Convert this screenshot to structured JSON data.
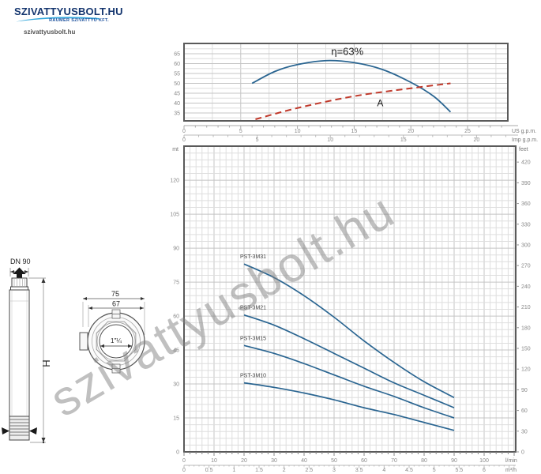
{
  "logo": {
    "title": "SZIVATTYUSBOLT.HU",
    "subtitle": "RAUMER SZIVATTYÚ KFT.",
    "site": "szivattyusbolt.hu"
  },
  "watermark": "szivattyusbolt.hu",
  "colors": {
    "curve": "#2a6591",
    "dashed": "#c0392b",
    "grid_minor": "#dedede",
    "grid_major": "#c4c4c4",
    "border": "#5a5a5a",
    "logo_navy": "#14356e",
    "logo_blue": "#35a8dc"
  },
  "drawing": {
    "dn_label": "DN 90",
    "height_label": "H",
    "outer_dim": "75",
    "inner_dim": "67",
    "thread_label": "1\"¼"
  },
  "chart_data": [
    {
      "type": "line",
      "name": "efficiency-chart",
      "title": "",
      "ylim": [
        31,
        70.2
      ],
      "yticks": [
        35,
        40,
        45,
        50,
        55,
        60,
        65
      ],
      "grid": {
        "x_minor": 2.5,
        "y_minor": 2.5,
        "on": true
      },
      "x_axes": [
        {
          "label": "US g.p.m.",
          "ticks": [
            0,
            5,
            10,
            15,
            20,
            25
          ],
          "max": 28.5
        },
        {
          "label": "Imp g.p.m.",
          "ticks": [
            0,
            5,
            10,
            15,
            20
          ],
          "max": 22.2
        }
      ],
      "annotations": [
        {
          "text": "η=63%",
          "x": 14.4,
          "y": 64.5,
          "size": 13
        },
        {
          "text": "A",
          "x": 17.3,
          "y": 38.5,
          "size": 12
        }
      ],
      "series": [
        {
          "name": "efficiency",
          "style": "solid",
          "x": [
            6.0,
            8,
            10,
            12.5,
            15,
            17.5,
            20,
            22,
            23.5
          ],
          "y": [
            50,
            56,
            59.5,
            61.5,
            60.5,
            57,
            50.5,
            43.5,
            35.5
          ]
        },
        {
          "name": "A",
          "style": "dashed",
          "x": [
            6.3,
            10,
            15,
            20,
            23.5
          ],
          "y": [
            31.8,
            37.5,
            43.5,
            47.5,
            50
          ]
        }
      ]
    },
    {
      "type": "line",
      "name": "performance-chart",
      "ylabel_left": "mt",
      "ylabel_right": "feet",
      "ylim_mt": [
        0,
        135.2
      ],
      "yticks_left": [
        0,
        15,
        30,
        45,
        60,
        75,
        90,
        105,
        120
      ],
      "yticks_right": [
        0,
        30,
        60,
        90,
        120,
        150,
        180,
        210,
        240,
        270,
        300,
        330,
        360,
        390,
        420
      ],
      "grid": {
        "x_minor": 2,
        "y_minor": 3,
        "on": true
      },
      "x_axes": [
        {
          "label": "l/min",
          "ticks": [
            0,
            10,
            20,
            30,
            40,
            50,
            60,
            70,
            80,
            90,
            100
          ],
          "max": 110.5
        },
        {
          "label": "m³/h",
          "ticks": [
            0,
            0.5,
            1,
            1.5,
            2,
            2.5,
            3,
            3.5,
            4,
            4.5,
            5,
            5.5,
            6
          ],
          "max": 6.6
        }
      ],
      "series": [
        {
          "name": "PST-3M31",
          "x": [
            20,
            30,
            40,
            50,
            60,
            70,
            80,
            90
          ],
          "y": [
            83,
            77,
            69,
            59.5,
            49,
            39.5,
            31,
            24
          ]
        },
        {
          "name": "PST-3M21",
          "x": [
            20,
            30,
            40,
            50,
            60,
            70,
            80,
            90
          ],
          "y": [
            60.5,
            56,
            50,
            43.5,
            37,
            30.5,
            25,
            19.5
          ]
        },
        {
          "name": "PST-3M15",
          "x": [
            20,
            30,
            40,
            50,
            60,
            70,
            80,
            90
          ],
          "y": [
            47,
            43.5,
            39,
            34,
            29,
            24.5,
            19.5,
            15
          ]
        },
        {
          "name": "PST-3M10",
          "x": [
            20,
            30,
            40,
            50,
            60,
            70,
            80,
            90
          ],
          "y": [
            30.5,
            28.5,
            26,
            23,
            19.5,
            16.5,
            13,
            9.5
          ]
        }
      ]
    }
  ]
}
